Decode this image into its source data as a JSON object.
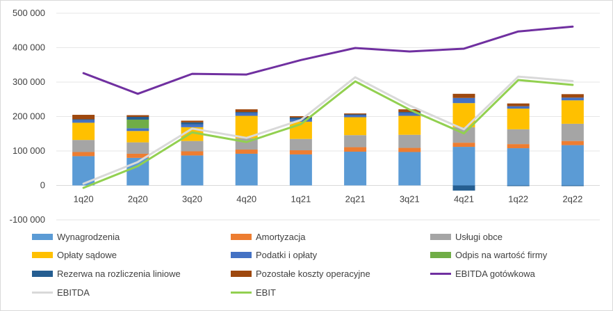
{
  "chart_data": {
    "type": "bar",
    "stacked": true,
    "categories": [
      "1q20",
      "2q20",
      "3q20",
      "4q20",
      "1q21",
      "2q21",
      "3q21",
      "4q21",
      "1q22",
      "2q22"
    ],
    "ylim": [
      -100000,
      500000
    ],
    "yticks": [
      -100000,
      0,
      100000,
      200000,
      300000,
      400000,
      500000
    ],
    "ytick_labels": [
      "-100 000",
      "0",
      "100 000",
      "200 000",
      "300 000",
      "400 000",
      "500 000"
    ],
    "grid": true,
    "legend_position": "bottom",
    "bar_series": [
      {
        "name": "Wynagrodzenia",
        "color": "#5b9bd5",
        "values": [
          85000,
          80000,
          87000,
          92000,
          90000,
          98000,
          97000,
          112000,
          108000,
          117000
        ]
      },
      {
        "name": "Amortyzacja",
        "color": "#ed7d31",
        "values": [
          12000,
          12000,
          12000,
          12000,
          12000,
          13000,
          12000,
          12000,
          12000,
          12000
        ]
      },
      {
        "name": "Usługi obce",
        "color": "#a5a5a5",
        "values": [
          35000,
          33000,
          30000,
          33000,
          33000,
          35000,
          38000,
          45000,
          43000,
          50000
        ]
      },
      {
        "name": "Opłaty sądowe",
        "color": "#ffc000",
        "values": [
          50000,
          33000,
          40000,
          65000,
          50000,
          52000,
          55000,
          70000,
          60000,
          68000
        ]
      },
      {
        "name": "Podatki i opłaty",
        "color": "#4472c4",
        "values": [
          8000,
          8000,
          8000,
          8000,
          7000,
          6000,
          8000,
          15000,
          7000,
          8000
        ]
      },
      {
        "name": "Odpis na wartość firmy",
        "color": "#70ad47",
        "values": [
          0,
          25000,
          0,
          0,
          0,
          0,
          0,
          0,
          0,
          0
        ]
      },
      {
        "name": "Rezerwa na rozliczenia liniowe",
        "color": "#255e91",
        "values": [
          2000,
          8000,
          6000,
          3000,
          5000,
          2000,
          3000,
          -15000,
          -2000,
          -2000
        ]
      },
      {
        "name": "Pozostałe koszty operacyjne",
        "color": "#9e480e",
        "values": [
          13000,
          5000,
          5000,
          8000,
          4000,
          3000,
          8000,
          12000,
          8000,
          10000
        ]
      }
    ],
    "line_series": [
      {
        "name": "EBITDA gotówkowa",
        "color": "#7030a0",
        "values": [
          326000,
          266000,
          324000,
          322000,
          364000,
          399000,
          389000,
          397000,
          447000,
          461000
        ]
      },
      {
        "name": "EBITDA",
        "color": "#d9d9d9",
        "values": [
          5000,
          68000,
          165000,
          138000,
          190000,
          314000,
          232000,
          163000,
          316000,
          303000
        ]
      },
      {
        "name": "EBIT",
        "color": "#92d050",
        "values": [
          -7000,
          56000,
          154000,
          126000,
          178000,
          302000,
          220000,
          151000,
          306000,
          292000
        ]
      }
    ]
  }
}
